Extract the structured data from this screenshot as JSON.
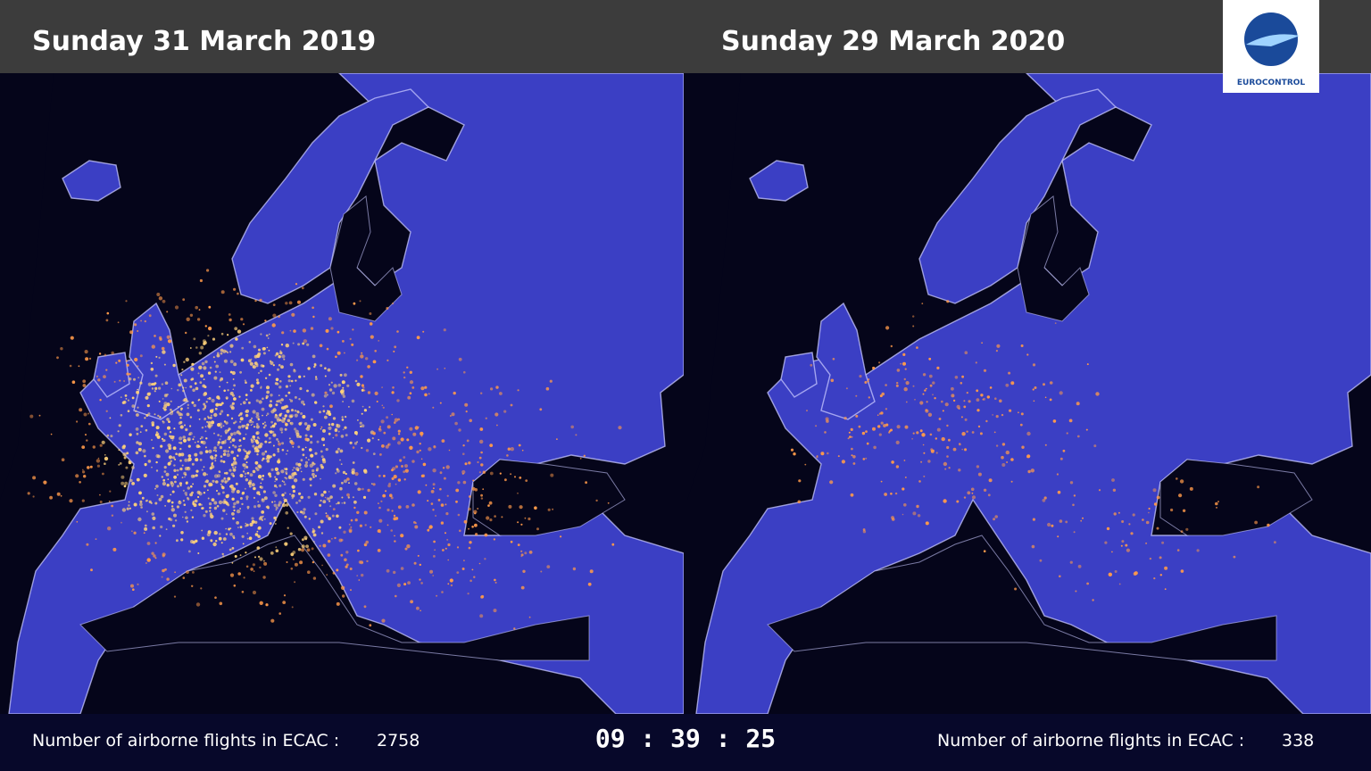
{
  "header": {
    "left_date": "Sunday 31 March 2019",
    "right_date": "Sunday 29 March 2020",
    "logo_text": "EUROCONTROL"
  },
  "footer": {
    "left_label": "Number of airborne flights in ECAC :",
    "left_count": 2758,
    "clock": "09 : 39 : 25",
    "right_label": "Number of airborne flights in ECAC :",
    "right_count": 338
  }
}
